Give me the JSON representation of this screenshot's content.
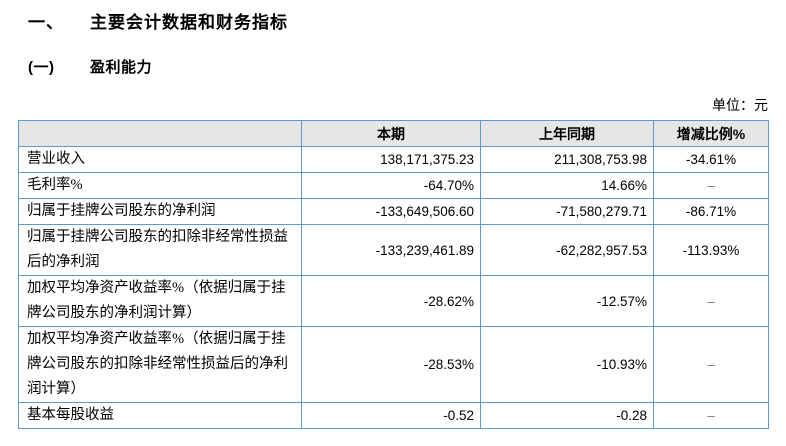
{
  "page": {
    "section_number": "一、",
    "section_title": "主要会计数据和财务指标",
    "subsection_number": "(一)",
    "subsection_title": "盈利能力",
    "unit_label": "单位：元"
  },
  "table": {
    "headers": {
      "indicator": "",
      "current": "本期",
      "prior": "上年同期",
      "change": "增减比例%"
    },
    "rows": [
      {
        "label": "营业收入",
        "current": "138,171,375.23",
        "prior": "211,308,753.98",
        "change": "-34.61%"
      },
      {
        "label": "毛利率%",
        "current": "-64.70%",
        "prior": "14.66%",
        "change": "–"
      },
      {
        "label": "归属于挂牌公司股东的净利润",
        "current": "-133,649,506.60",
        "prior": "-71,580,279.71",
        "change": "-86.71%"
      },
      {
        "label": "归属于挂牌公司股东的扣除非经常性损益后的净利润",
        "current": "-133,239,461.89",
        "prior": "-62,282,957.53",
        "change": "-113.93%"
      },
      {
        "label": "加权平均净资产收益率%（依据归属于挂牌公司股东的净利润计算）",
        "current": "-28.62%",
        "prior": "-12.57%",
        "change": "–"
      },
      {
        "label": "加权平均净资产收益率%（依据归属于挂牌公司股东的扣除非经常性损益后的净利润计算）",
        "current": "-28.53%",
        "prior": "-10.93%",
        "change": "–"
      },
      {
        "label": "基本每股收益",
        "current": "-0.52",
        "prior": "-0.28",
        "change": "–"
      }
    ],
    "colors": {
      "border": "#5B9BD5",
      "header_bg": "#E7E6E6",
      "text": "#000000",
      "dash": "#7f7f7f"
    }
  }
}
